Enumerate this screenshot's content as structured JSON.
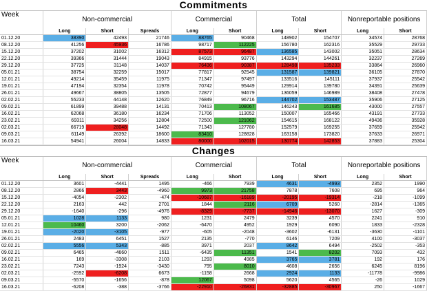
{
  "commitments": {
    "title": "Commitments",
    "week_label": "Week",
    "groups": {
      "noncommercial": "Non-commercial",
      "commercial": "Commercial",
      "total": "Total",
      "nonreportable": "Nonreportable positions"
    },
    "subheaders": [
      "Long",
      "Short",
      "Spreads",
      "Long",
      "Short",
      "Long",
      "Short",
      "Long",
      "Short"
    ],
    "rows": [
      {
        "week": "01.12.20",
        "v": [
          "38390",
          "42493",
          "21746",
          "88765",
          "90468",
          "148902",
          "154707",
          "34574",
          "28768"
        ],
        "c": [
          "b",
          "",
          "",
          "b",
          "",
          "",
          "",
          "",
          ""
        ]
      },
      {
        "week": "08.12.20",
        "v": [
          "41256",
          "45936",
          "16786",
          "98717",
          "112225",
          "156780",
          "162316",
          "35529",
          "29733"
        ],
        "c": [
          "",
          "r",
          "",
          "",
          "g",
          "",
          "",
          "",
          ""
        ]
      },
      {
        "week": "15.12.20",
        "v": [
          "37202",
          "31002",
          "16312",
          "87573",
          "96487",
          "136585",
          "143002",
          "35051",
          "28634"
        ],
        "c": [
          "",
          "",
          "",
          "r",
          "r",
          "b",
          "",
          "",
          ""
        ]
      },
      {
        "week": "22.12.20",
        "v": [
          "39366",
          "31444",
          "19043",
          "84915",
          "93776",
          "143294",
          "144261",
          "32237",
          "27269"
        ],
        "c": [
          "",
          "",
          "",
          "",
          "",
          "",
          "",
          "",
          ""
        ]
      },
      {
        "week": "29.12.20",
        "v": [
          "37725",
          "31148",
          "14037",
          "76436",
          "90387",
          "128498",
          "135233",
          "33864",
          "26960"
        ],
        "c": [
          "",
          "",
          "",
          "r",
          "r",
          "r",
          "r",
          "",
          ""
        ]
      },
      {
        "week": "05.01.21",
        "v": [
          "38754",
          "32259",
          "15017",
          "77817",
          "92545",
          "131587",
          "139821",
          "36105",
          "27870"
        ],
        "c": [
          "",
          "",
          "",
          "",
          "",
          "b",
          "b",
          "",
          ""
        ]
      },
      {
        "week": "12.01.21",
        "v": [
          "49214",
          "35459",
          "11975",
          "71347",
          "97497",
          "133516",
          "145111",
          "37937",
          "25542"
        ],
        "c": [
          "",
          "",
          "",
          "",
          "",
          "",
          "",
          "",
          ""
        ]
      },
      {
        "week": "19.01.21",
        "v": [
          "47194",
          "32354",
          "11978",
          "70742",
          "95449",
          "129914",
          "139780",
          "34391",
          "25639"
        ],
        "c": [
          "",
          "",
          "",
          "",
          "",
          "",
          "",
          "",
          ""
        ]
      },
      {
        "week": "26.01.21",
        "v": [
          "49667",
          "38805",
          "13505",
          "72877",
          "94679",
          "136059",
          "146989",
          "38408",
          "27478"
        ],
        "c": [
          "",
          "",
          "",
          "",
          "",
          "",
          "",
          "",
          ""
        ]
      },
      {
        "week": "02.02.21",
        "v": [
          "55233",
          "44148",
          "12620",
          "76849",
          "96716",
          "144702",
          "153487",
          "35906",
          "27125"
        ],
        "c": [
          "",
          "",
          "",
          "",
          "",
          "b",
          "b",
          "",
          ""
        ]
      },
      {
        "week": "09.02.21",
        "v": [
          "61899",
          "39488",
          "14131",
          "70413",
          "108067",
          "146243",
          "161685",
          "43000",
          "27557"
        ],
        "c": [
          "",
          "",
          "",
          "",
          "g",
          "",
          "g",
          "",
          ""
        ]
      },
      {
        "week": "16.02.21",
        "v": [
          "62068",
          "36180",
          "16234",
          "71706",
          "113052",
          "150007",
          "165466",
          "43191",
          "27733"
        ],
        "c": [
          "",
          "",
          "",
          "",
          "",
          "",
          "",
          "",
          ""
        ]
      },
      {
        "week": "23.02.21",
        "v": [
          "69311",
          "34256",
          "12804",
          "72500",
          "121062",
          "154615",
          "168122",
          "49436",
          "35928"
        ],
        "c": [
          "",
          "",
          "",
          "",
          "g",
          "",
          "",
          "",
          ""
        ]
      },
      {
        "week": "02.03.21",
        "v": [
          "66719",
          "28048",
          "14492",
          "71343",
          "127780",
          "152579",
          "169255",
          "37659",
          "25942"
        ],
        "c": [
          "",
          "r",
          "",
          "",
          "",
          "",
          "",
          "",
          ""
        ]
      },
      {
        "week": "09.03.21",
        "v": [
          "61149",
          "26392",
          "18600",
          "83410",
          "128828",
          "163158",
          "173820",
          "37633",
          "26971"
        ],
        "c": [
          "",
          "",
          "",
          "g",
          "",
          "",
          "",
          "",
          ""
        ]
      },
      {
        "week": "16.03.21",
        "v": [
          "54941",
          "26004",
          "14833",
          "80000",
          "102015",
          "130774",
          "142853",
          "37883",
          "25304"
        ],
        "c": [
          "",
          "",
          "",
          "r",
          "r",
          "r",
          "r",
          "",
          ""
        ]
      }
    ]
  },
  "changes": {
    "title": "Changes",
    "week_label": "Week",
    "groups": {
      "noncommercial": "Non-commercial",
      "commercial": "Commercial",
      "total": "Total",
      "nonreportable": "Nonreportable positions"
    },
    "subheaders": [
      "Long",
      "Short",
      "Spreads",
      "Long",
      "Short",
      "Long",
      "Short",
      "Long",
      "Short"
    ],
    "rows": [
      {
        "week": "01.12.20",
        "v": [
          "3601",
          "-4441",
          "1495",
          "-466",
          "7939",
          "4631",
          "-4993",
          "2352",
          "1990"
        ],
        "c": [
          "",
          "",
          "",
          "",
          "",
          "b",
          "b",
          "",
          ""
        ]
      },
      {
        "week": "08.12.20",
        "v": [
          "2866",
          "3443",
          "-4960",
          "9973",
          "21758",
          "7878",
          "7608",
          "695",
          "964"
        ],
        "c": [
          "",
          "r",
          "",
          "g",
          "g",
          "",
          "",
          "",
          ""
        ]
      },
      {
        "week": "15.12.20",
        "v": [
          "-4054",
          "-2302",
          "-474",
          "-10687",
          "-16189",
          "-20195",
          "-19314",
          "-218",
          "-1099"
        ],
        "c": [
          "",
          "",
          "",
          "r",
          "r",
          "r",
          "r",
          "",
          ""
        ]
      },
      {
        "week": "22.12.20",
        "v": [
          "2163",
          "442",
          "2701",
          "1844",
          "2116",
          "6709",
          "5260",
          "-2814",
          "-1365"
        ],
        "c": [
          "",
          "",
          "",
          "",
          "g",
          "b",
          "",
          "",
          ""
        ]
      },
      {
        "week": "29.12.20",
        "v": [
          "-1640",
          "-296",
          "-4976",
          "-8329",
          "-7737",
          "-14946",
          "-13070",
          "1627",
          "-309"
        ],
        "c": [
          "",
          "",
          "",
          "r",
          "r",
          "r",
          "r",
          "",
          ""
        ]
      },
      {
        "week": "05.01.21",
        "v": [
          "1028",
          "1133",
          "980",
          "1231",
          "2479",
          "3239",
          "4570",
          "2241",
          "910"
        ],
        "c": [
          "b",
          "b",
          "",
          "",
          "",
          "",
          "",
          "",
          ""
        ]
      },
      {
        "week": "12.01.21",
        "v": [
          "10460",
          "3200",
          "-2062",
          "-6470",
          "4952",
          "1929",
          "6090",
          "1833",
          "-2328"
        ],
        "c": [
          "g",
          "",
          "",
          "",
          "",
          "",
          "",
          "",
          ""
        ]
      },
      {
        "week": "19.01.21",
        "v": [
          "-2020",
          "-3105",
          "-977",
          "-605",
          "-2048",
          "-3602",
          "-6131",
          "-3630",
          "-1101"
        ],
        "c": [
          "b",
          "b",
          "",
          "",
          "",
          "",
          "",
          "",
          ""
        ]
      },
      {
        "week": "26.01.21",
        "v": [
          "2483",
          "6451",
          "1527",
          "2135",
          "-770",
          "6146",
          "7209",
          "4100",
          "-3037"
        ],
        "c": [
          "",
          "",
          "",
          "",
          "",
          "",
          "",
          "",
          ""
        ]
      },
      {
        "week": "02.02.21",
        "v": [
          "5556",
          "5343",
          "-885",
          "3971",
          "2037",
          "8642",
          "6494",
          "-2502",
          "-353"
        ],
        "c": [
          "b",
          "b",
          "",
          "",
          "",
          "b",
          "",
          "",
          ""
        ]
      },
      {
        "week": "09.02.21",
        "v": [
          "6465",
          "-4660",
          "1511",
          "-6435",
          "11351",
          "1541",
          "8202",
          "7093",
          "432"
        ],
        "c": [
          "",
          "",
          "",
          "",
          "g",
          "",
          "g",
          "",
          ""
        ]
      },
      {
        "week": "16.02.21",
        "v": [
          "169",
          "-3308",
          "2103",
          "1293",
          "4985",
          "3765",
          "3781",
          "192",
          "176"
        ],
        "c": [
          "",
          "",
          "",
          "",
          "",
          "b",
          "b",
          "",
          ""
        ]
      },
      {
        "week": "23.02.21",
        "v": [
          "7243",
          "-1924",
          "-3430",
          "795",
          "8010",
          "4608",
          "2656",
          "6245",
          "8196"
        ],
        "c": [
          "",
          "",
          "",
          "",
          "g",
          "",
          "",
          "",
          ""
        ]
      },
      {
        "week": "02.03.21",
        "v": [
          "-2592",
          "-6208",
          "6673",
          "-1158",
          "2668",
          "2924",
          "1133",
          "-11778",
          "-9986"
        ],
        "c": [
          "",
          "r",
          "",
          "",
          "",
          "b",
          "b",
          "",
          ""
        ]
      },
      {
        "week": "09.03.21",
        "v": [
          "-5570",
          "-1656",
          "-878",
          "12067",
          "5098",
          "5620",
          "4565",
          "-26",
          "1029"
        ],
        "c": [
          "",
          "",
          "",
          "g",
          "",
          "",
          "",
          "",
          ""
        ]
      },
      {
        "week": "16.03.21",
        "v": [
          "-6208",
          "-388",
          "-3766",
          "-22910",
          "-26831",
          "-32885",
          "-30967",
          "250",
          "-1667"
        ],
        "c": [
          "",
          "",
          "",
          "r",
          "r",
          "r",
          "r",
          "",
          ""
        ]
      }
    ]
  },
  "colors": {
    "blue": "#5aaee6",
    "red": "#ef1f1f",
    "green": "#4cba4c"
  }
}
